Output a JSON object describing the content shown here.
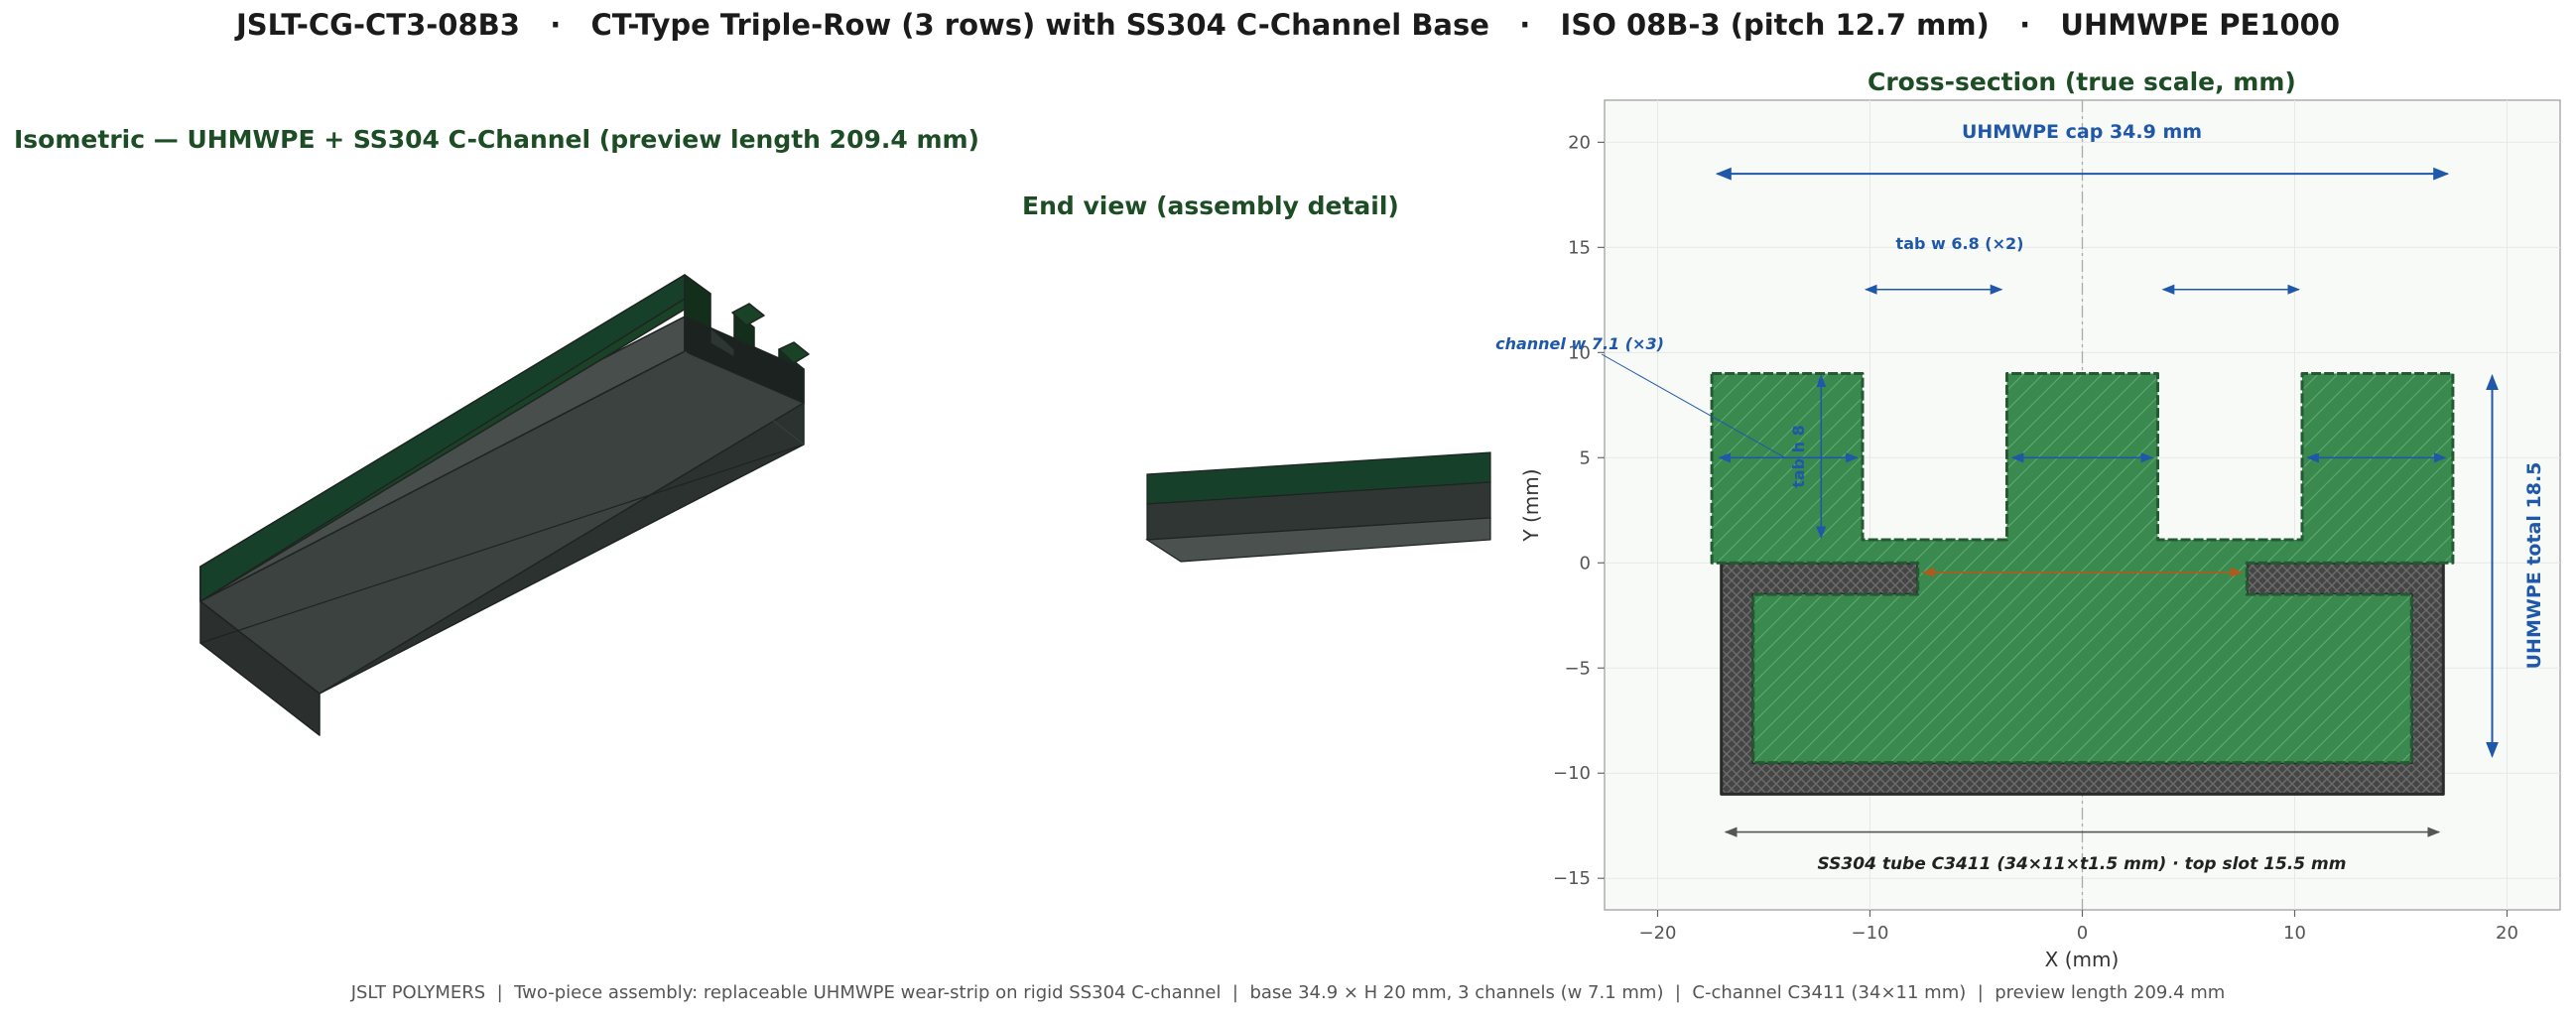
{
  "header": {
    "title": "JSLT-CG-CT3-08B3   ·   CT-Type Triple-Row (3 rows) with SS304 C-Channel Base   ·   ISO 08B-3 (pitch 12.7 mm)   ·   UHMWPE PE1000"
  },
  "iso_panel": {
    "title": "Isometric — UHMWPE + SS304 C-Channel  (preview length 209.4 mm)"
  },
  "end_panel": {
    "title": "End view (assembly detail)"
  },
  "section_panel": {
    "title": "Cross-section (true scale, mm)",
    "xlabel": "X  (mm)",
    "ylabel": "Y  (mm)",
    "x_ticks": [
      -20,
      -10,
      0,
      10,
      20
    ],
    "y_ticks": [
      20,
      15,
      10,
      5,
      0,
      -5,
      -10,
      -15
    ],
    "xlim": [
      -22.5,
      22.5
    ],
    "ylim": [
      -16.5,
      22
    ],
    "grid": true,
    "annotations": {
      "cap": "UHMWPE cap 34.9 mm",
      "tab": "tab w 6.8 (×2)",
      "channel": "channel w 7.1 (×3)",
      "tab_height": "tab h 8",
      "total": "UHMWPE total 18.5",
      "tube": "SS304 tube C3411  (34×11×t1.5 mm)  ·  top slot 15.5 mm"
    },
    "colors": {
      "uhmwpe": "#3a8a50",
      "steel": "#454545",
      "dimension": "#1f58a8",
      "slot_dimension": "#b05a20"
    }
  },
  "footer": {
    "text": "JSLT POLYMERS  |  Two-piece assembly: replaceable UHMWPE wear-strip on rigid SS304 C-channel  |  base 34.9 × H 20 mm, 3 channels (w 7.1 mm)  |  C-channel C3411 (34×11 mm)  |  preview length 209.4 mm"
  }
}
